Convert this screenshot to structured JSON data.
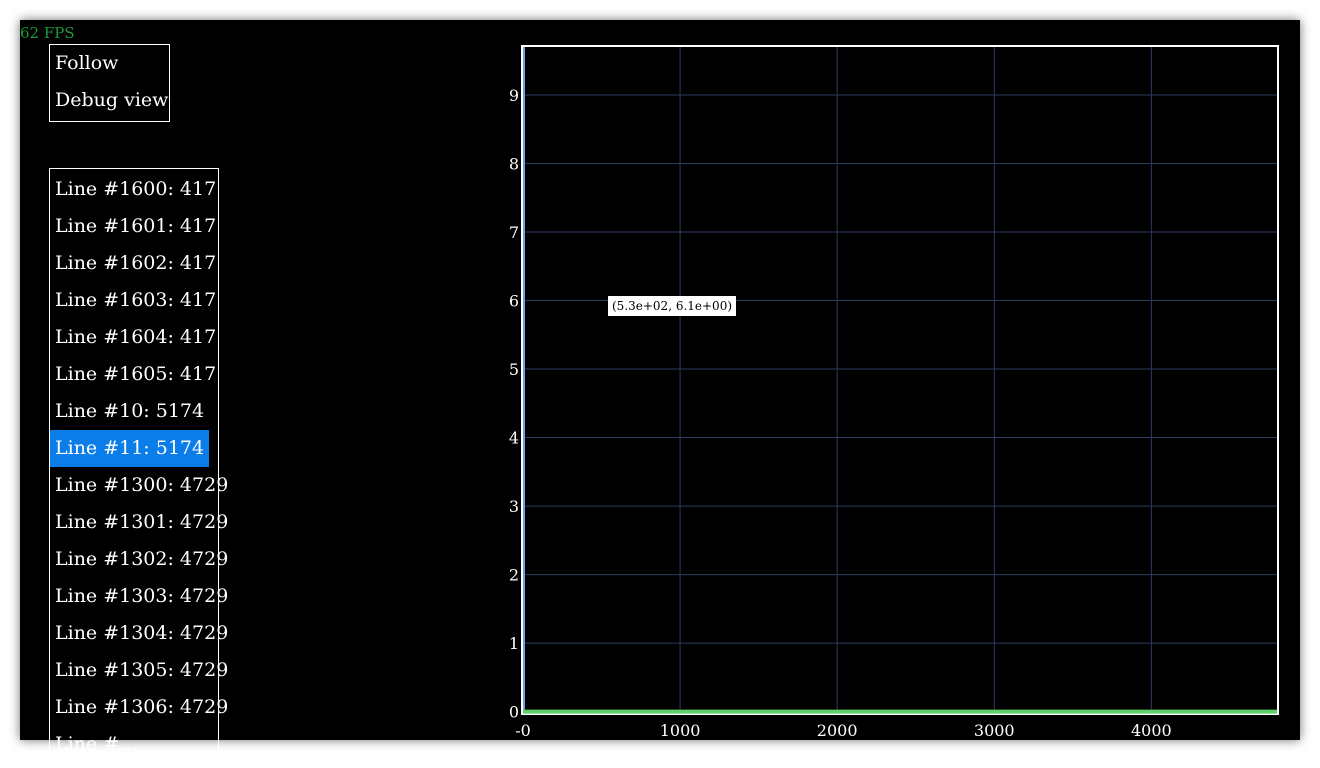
{
  "fps": "62 FPS",
  "menu": {
    "follow_label": "Follow",
    "debug_view_label": "Debug view"
  },
  "lines": {
    "items": [
      {
        "label": "Line #1600: 417",
        "selected": false
      },
      {
        "label": "Line #1601: 417",
        "selected": false
      },
      {
        "label": "Line #1602: 417",
        "selected": false
      },
      {
        "label": "Line #1603: 417",
        "selected": false
      },
      {
        "label": "Line #1604: 417",
        "selected": false
      },
      {
        "label": "Line #1605: 417",
        "selected": false
      },
      {
        "label": "Line #10: 5174",
        "selected": false
      },
      {
        "label": "Line #11: 5174",
        "selected": true
      },
      {
        "label": "Line #1300: 4729",
        "selected": false
      },
      {
        "label": "Line #1301: 4729",
        "selected": false
      },
      {
        "label": "Line #1302: 4729",
        "selected": false
      },
      {
        "label": "Line #1303: 4729",
        "selected": false
      },
      {
        "label": "Line #1304: 4729",
        "selected": false
      },
      {
        "label": "Line #1305: 4729",
        "selected": false
      },
      {
        "label": "Line #1306: 4729",
        "selected": false
      },
      {
        "label": "Line #…",
        "selected": false
      }
    ]
  },
  "tooltip": "(5.3e+02, 6.1e+00)",
  "colors": {
    "background": "#000000",
    "grid": "#2c3d5e",
    "selection": "#0a7de8",
    "fps": "#1a9a3a",
    "series": "#5fcf6a",
    "y_axis_line": "#6aa3e0"
  },
  "chart_data": {
    "type": "line",
    "x_ticks": [
      "-0",
      "1000",
      "2000",
      "3000",
      "4000"
    ],
    "x_tick_values": [
      0,
      1000,
      2000,
      3000,
      4000
    ],
    "y_ticks": [
      "0",
      "1",
      "2",
      "3",
      "4",
      "5",
      "6",
      "7",
      "8",
      "9"
    ],
    "y_tick_values": [
      0,
      1,
      2,
      3,
      4,
      5,
      6,
      7,
      8,
      9
    ],
    "xlim": [
      0,
      4800
    ],
    "ylim": [
      -0.02,
      9.7
    ],
    "grid": true,
    "series": [
      {
        "x": [
          0,
          4800
        ],
        "y": [
          0,
          0
        ]
      }
    ]
  }
}
